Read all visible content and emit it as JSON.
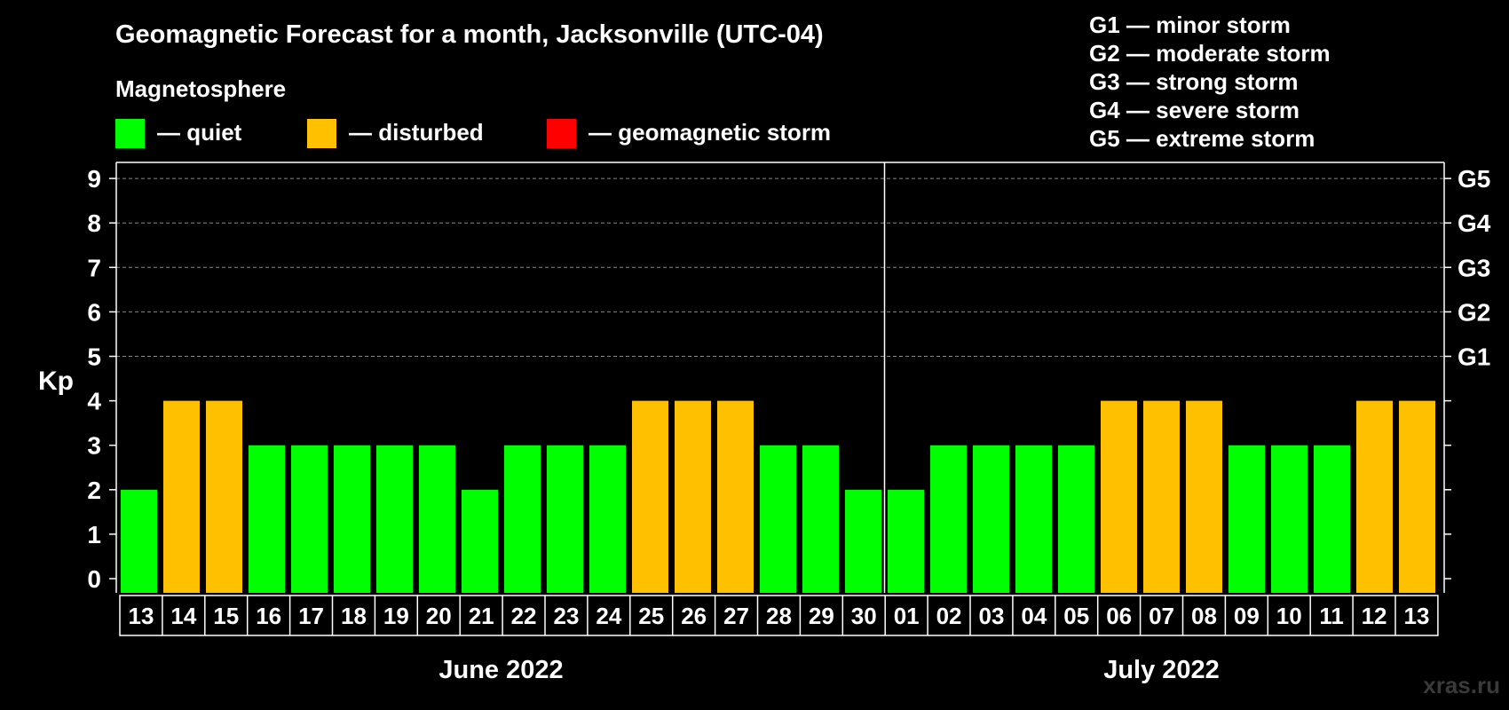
{
  "chart_data": {
    "type": "bar",
    "title": "Geomagnetic Forecast for a month, Jacksonville (UTC-04)",
    "subtitle": "Magnetosphere",
    "ylabel": "Kp",
    "ylim": [
      0,
      9
    ],
    "yticks": [
      "0",
      "1",
      "2",
      "3",
      "4",
      "5",
      "6",
      "7",
      "8",
      "9"
    ],
    "gscale": [
      {
        "kp": 5,
        "label": "G1"
      },
      {
        "kp": 6,
        "label": "G2"
      },
      {
        "kp": 7,
        "label": "G3"
      },
      {
        "kp": 8,
        "label": "G4"
      },
      {
        "kp": 9,
        "label": "G5"
      }
    ],
    "legend": [
      {
        "label": "— quiet",
        "color": "#00ff00"
      },
      {
        "label": "— disturbed",
        "color": "#ffc000"
      },
      {
        "label": "— geomagnetic storm",
        "color": "#ff0000"
      }
    ],
    "storm_legend": [
      "G1 — minor storm",
      "G2 — moderate storm",
      "G3 — strong storm",
      "G4 — severe storm",
      "G5 — extreme storm"
    ],
    "months": [
      {
        "label": "June 2022",
        "start_index": 0,
        "end_index": 17
      },
      {
        "label": "July 2022",
        "start_index": 18,
        "end_index": 30
      }
    ],
    "categories": [
      "13",
      "14",
      "15",
      "16",
      "17",
      "18",
      "19",
      "20",
      "21",
      "22",
      "23",
      "24",
      "25",
      "26",
      "27",
      "28",
      "29",
      "30",
      "01",
      "02",
      "03",
      "04",
      "05",
      "06",
      "07",
      "08",
      "09",
      "10",
      "11",
      "12",
      "13"
    ],
    "values": [
      2,
      4,
      4,
      3,
      3,
      3,
      3,
      3,
      2,
      3,
      3,
      3,
      4,
      4,
      4,
      3,
      3,
      2,
      2,
      3,
      3,
      3,
      3,
      4,
      4,
      4,
      3,
      3,
      3,
      4,
      4
    ],
    "status": [
      "quiet",
      "disturbed",
      "disturbed",
      "quiet",
      "quiet",
      "quiet",
      "quiet",
      "quiet",
      "quiet",
      "quiet",
      "quiet",
      "quiet",
      "disturbed",
      "disturbed",
      "disturbed",
      "quiet",
      "quiet",
      "quiet",
      "quiet",
      "quiet",
      "quiet",
      "quiet",
      "quiet",
      "disturbed",
      "disturbed",
      "disturbed",
      "quiet",
      "quiet",
      "quiet",
      "disturbed",
      "disturbed"
    ],
    "colors": {
      "quiet": "#00ff00",
      "disturbed": "#ffc000",
      "storm": "#ff0000",
      "grid": "#888888",
      "axis": "#ffffff",
      "background": "#000000"
    }
  },
  "watermark": "xras.ru"
}
